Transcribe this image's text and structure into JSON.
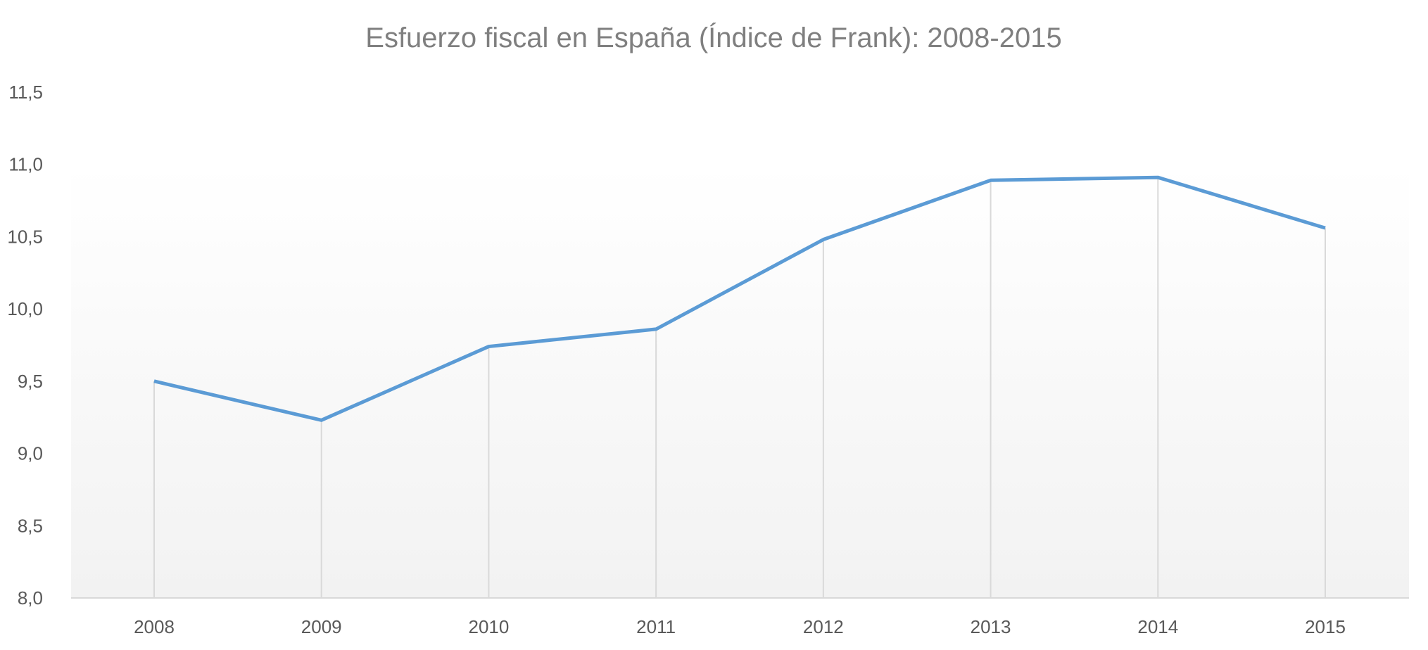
{
  "chart_data": {
    "type": "line",
    "title": "Esfuerzo fiscal en España (Índice de Frank): 2008-2015",
    "xlabel": "",
    "ylabel": "",
    "categories": [
      "2008",
      "2009",
      "2010",
      "2011",
      "2012",
      "2013",
      "2014",
      "2015"
    ],
    "series": [
      {
        "values": [
          9.5,
          9.23,
          9.74,
          9.86,
          10.48,
          10.89,
          10.91,
          10.56
        ]
      }
    ],
    "ylim": [
      8.0,
      11.5
    ],
    "yticks": [
      "8,0",
      "8,5",
      "9,0",
      "9,5",
      "10,0",
      "10,5",
      "11,0",
      "11,5"
    ],
    "ytick_values": [
      8.0,
      8.5,
      9.0,
      9.5,
      10.0,
      10.5,
      11.0,
      11.5
    ],
    "grid": "vertical drop lines",
    "legend": "none",
    "colors": {
      "line": "#5b9bd5",
      "droplines": "#d9d9d9",
      "axis": "#d9d9d9",
      "background_bottom": "#f2f2f2"
    }
  }
}
